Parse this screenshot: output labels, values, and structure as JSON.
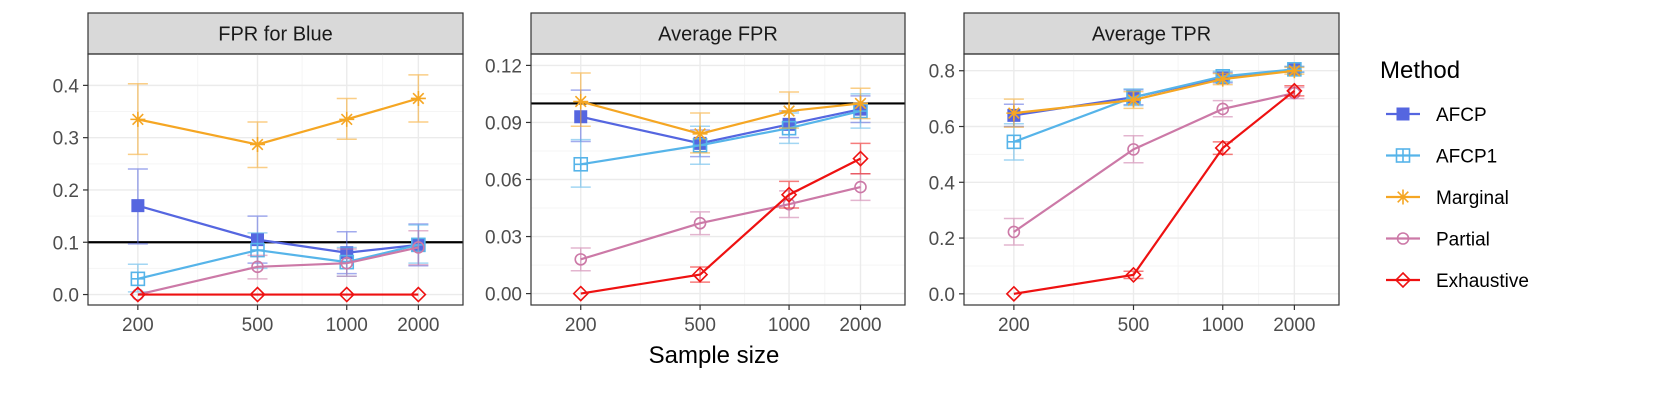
{
  "figure": {
    "xlabel": "Sample size",
    "legend_title": "Method"
  },
  "colors": {
    "AFCP": "#5566e0",
    "AFCP1": "#56b4e9",
    "Marginal": "#f5a623",
    "Partial": "#cc79a7",
    "Exhaustive": "#ee1111",
    "reference_line": "#000000",
    "strip_bg": "#d9d9d9",
    "grid_major": "#ebebeb",
    "grid_minor": "#f5f5f5"
  },
  "chart_data": [
    {
      "type": "line",
      "title": "FPR for Blue",
      "categories": [
        "200",
        "500",
        "1000",
        "2000"
      ],
      "ylim": [
        -0.02,
        0.46
      ],
      "yticks": [
        0.0,
        0.1,
        0.2,
        0.3,
        0.4
      ],
      "ytick_labels": [
        "0.0",
        "0.1",
        "0.2",
        "0.3",
        "0.4"
      ],
      "hline": 0.1,
      "series": [
        {
          "name": "AFCP",
          "marker": "square-filled",
          "values": [
            0.17,
            0.105,
            0.08,
            0.095
          ],
          "lower": [
            0.097,
            0.06,
            0.04,
            0.055
          ],
          "upper": [
            0.24,
            0.15,
            0.12,
            0.135
          ]
        },
        {
          "name": "AFCP1",
          "marker": "square-plus",
          "values": [
            0.03,
            0.085,
            0.062,
            0.095
          ],
          "lower": [
            0.005,
            0.05,
            0.035,
            0.06
          ],
          "upper": [
            0.058,
            0.118,
            0.09,
            0.133
          ]
        },
        {
          "name": "Marginal",
          "marker": "asterisk",
          "values": [
            0.335,
            0.287,
            0.335,
            0.375
          ],
          "lower": [
            0.268,
            0.243,
            0.297,
            0.33
          ],
          "upper": [
            0.403,
            0.33,
            0.375,
            0.42
          ]
        },
        {
          "name": "Partial",
          "marker": "circle-open",
          "values": [
            0.0,
            0.053,
            0.06,
            0.09
          ],
          "lower": [
            0.0,
            0.03,
            0.035,
            0.057
          ],
          "upper": [
            0.0,
            0.075,
            0.087,
            0.122
          ]
        },
        {
          "name": "Exhaustive",
          "marker": "diamond-open",
          "values": [
            0.0,
            0.0,
            0.0,
            0.0
          ],
          "lower": [
            0.0,
            0.0,
            0.0,
            0.0
          ],
          "upper": [
            0.0,
            0.0,
            0.0,
            0.0
          ]
        }
      ]
    },
    {
      "type": "line",
      "title": "Average FPR",
      "categories": [
        "200",
        "500",
        "1000",
        "2000"
      ],
      "ylim": [
        -0.006,
        0.126
      ],
      "yticks": [
        0.0,
        0.03,
        0.06,
        0.09,
        0.12
      ],
      "ytick_labels": [
        "0.00",
        "0.03",
        "0.06",
        "0.09",
        "0.12"
      ],
      "hline": 0.1,
      "series": [
        {
          "name": "AFCP",
          "marker": "square-filled",
          "values": [
            0.093,
            0.079,
            0.089,
            0.097
          ],
          "lower": [
            0.08,
            0.072,
            0.082,
            0.09
          ],
          "upper": [
            0.107,
            0.086,
            0.096,
            0.104
          ]
        },
        {
          "name": "AFCP1",
          "marker": "square-plus",
          "values": [
            0.068,
            0.078,
            0.087,
            0.096
          ],
          "lower": [
            0.056,
            0.068,
            0.079,
            0.087
          ],
          "upper": [
            0.081,
            0.088,
            0.095,
            0.105
          ]
        },
        {
          "name": "Marginal",
          "marker": "asterisk",
          "values": [
            0.101,
            0.084,
            0.096,
            0.1
          ],
          "lower": [
            0.088,
            0.074,
            0.087,
            0.092
          ],
          "upper": [
            0.116,
            0.095,
            0.106,
            0.108
          ]
        },
        {
          "name": "Partial",
          "marker": "circle-open",
          "values": [
            0.018,
            0.037,
            0.047,
            0.056
          ],
          "lower": [
            0.012,
            0.031,
            0.04,
            0.049
          ],
          "upper": [
            0.024,
            0.043,
            0.054,
            0.063
          ]
        },
        {
          "name": "Exhaustive",
          "marker": "diamond-open",
          "values": [
            0.0,
            0.01,
            0.052,
            0.071
          ],
          "lower": [
            0.0,
            0.006,
            0.045,
            0.063
          ],
          "upper": [
            0.0,
            0.014,
            0.059,
            0.079
          ]
        }
      ]
    },
    {
      "type": "line",
      "title": "Average TPR",
      "categories": [
        "200",
        "500",
        "1000",
        "2000"
      ],
      "ylim": [
        -0.04,
        0.86
      ],
      "yticks": [
        0.0,
        0.2,
        0.4,
        0.6,
        0.8
      ],
      "ytick_labels": [
        "0.0",
        "0.2",
        "0.4",
        "0.6",
        "0.8"
      ],
      "hline": null,
      "series": [
        {
          "name": "AFCP",
          "marker": "square-filled",
          "values": [
            0.64,
            0.705,
            0.775,
            0.805
          ],
          "lower": [
            0.6,
            0.678,
            0.757,
            0.795
          ],
          "upper": [
            0.68,
            0.732,
            0.793,
            0.815
          ]
        },
        {
          "name": "AFCP1",
          "marker": "square-plus",
          "values": [
            0.545,
            0.705,
            0.78,
            0.805
          ],
          "lower": [
            0.48,
            0.675,
            0.762,
            0.795
          ],
          "upper": [
            0.61,
            0.735,
            0.798,
            0.815
          ]
        },
        {
          "name": "Marginal",
          "marker": "asterisk",
          "values": [
            0.648,
            0.695,
            0.77,
            0.8
          ],
          "lower": [
            0.598,
            0.665,
            0.75,
            0.788
          ],
          "upper": [
            0.698,
            0.725,
            0.79,
            0.812
          ]
        },
        {
          "name": "Partial",
          "marker": "circle-open",
          "values": [
            0.222,
            0.518,
            0.663,
            0.72
          ],
          "lower": [
            0.175,
            0.47,
            0.635,
            0.7
          ],
          "upper": [
            0.27,
            0.567,
            0.693,
            0.74
          ]
        },
        {
          "name": "Exhaustive",
          "marker": "diamond-open",
          "values": [
            0.0,
            0.068,
            0.523,
            0.728
          ],
          "lower": [
            0.0,
            0.055,
            0.5,
            0.71
          ],
          "upper": [
            0.0,
            0.081,
            0.545,
            0.746
          ]
        }
      ]
    }
  ]
}
